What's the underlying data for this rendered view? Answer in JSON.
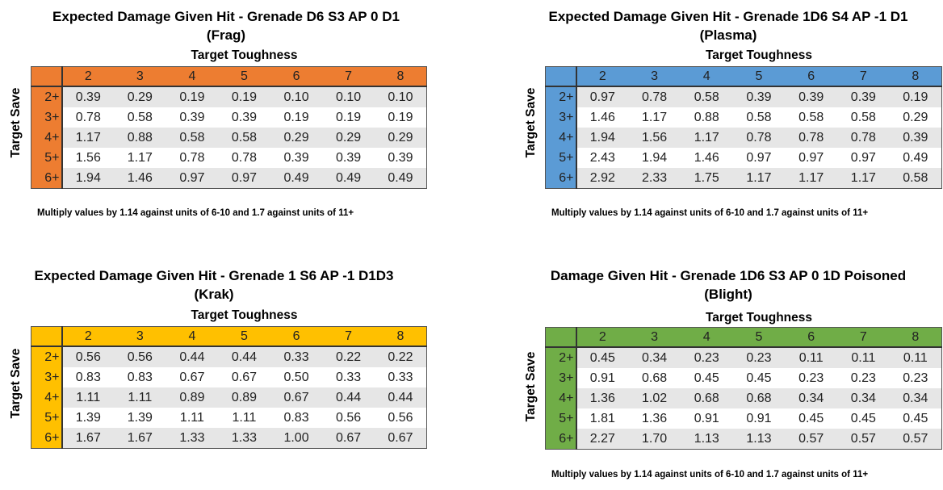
{
  "common": {
    "x_axis_label": "Target Toughness",
    "y_axis_label": "Target Save",
    "toughness": [
      "2",
      "3",
      "4",
      "5",
      "6",
      "7",
      "8"
    ],
    "saves": [
      "2+",
      "3+",
      "4+",
      "5+",
      "6+"
    ],
    "note": "Multiply values by 1.14  against units of 6-10 and 1.7  against units of 11+"
  },
  "panels": [
    {
      "id": "frag",
      "title_line1": "Expected Damage Given Hit - Grenade D6 S3 AP 0 D1",
      "title_line2": "(Frag)",
      "header_color": "#ED7D31",
      "has_note": true,
      "rows": [
        [
          "0.39",
          "0.29",
          "0.19",
          "0.19",
          "0.10",
          "0.10",
          "0.10"
        ],
        [
          "0.78",
          "0.58",
          "0.39",
          "0.39",
          "0.19",
          "0.19",
          "0.19"
        ],
        [
          "1.17",
          "0.88",
          "0.58",
          "0.58",
          "0.29",
          "0.29",
          "0.29"
        ],
        [
          "1.56",
          "1.17",
          "0.78",
          "0.78",
          "0.39",
          "0.39",
          "0.39"
        ],
        [
          "1.94",
          "1.46",
          "0.97",
          "0.97",
          "0.49",
          "0.49",
          "0.49"
        ]
      ]
    },
    {
      "id": "plasma",
      "title_line1": "Expected Damage Given Hit - Grenade 1D6 S4 AP -1 D1",
      "title_line2": "(Plasma)",
      "header_color": "#5B9BD5",
      "has_note": true,
      "rows": [
        [
          "0.97",
          "0.78",
          "0.58",
          "0.39",
          "0.39",
          "0.39",
          "0.19"
        ],
        [
          "1.46",
          "1.17",
          "0.88",
          "0.58",
          "0.58",
          "0.58",
          "0.29"
        ],
        [
          "1.94",
          "1.56",
          "1.17",
          "0.78",
          "0.78",
          "0.78",
          "0.39"
        ],
        [
          "2.43",
          "1.94",
          "1.46",
          "0.97",
          "0.97",
          "0.97",
          "0.49"
        ],
        [
          "2.92",
          "2.33",
          "1.75",
          "1.17",
          "1.17",
          "1.17",
          "0.58"
        ]
      ]
    },
    {
      "id": "krak",
      "title_line1": "Expected Damage Given Hit - Grenade 1 S6 AP -1 D1D3",
      "title_line2": "(Krak)",
      "header_color": "#FFC000",
      "has_note": false,
      "rows": [
        [
          "0.56",
          "0.56",
          "0.44",
          "0.44",
          "0.33",
          "0.22",
          "0.22"
        ],
        [
          "0.83",
          "0.83",
          "0.67",
          "0.67",
          "0.50",
          "0.33",
          "0.33"
        ],
        [
          "1.11",
          "1.11",
          "0.89",
          "0.89",
          "0.67",
          "0.44",
          "0.44"
        ],
        [
          "1.39",
          "1.39",
          "1.11",
          "1.11",
          "0.83",
          "0.56",
          "0.56"
        ],
        [
          "1.67",
          "1.67",
          "1.33",
          "1.33",
          "1.00",
          "0.67",
          "0.67"
        ]
      ]
    },
    {
      "id": "blight",
      "title_line1": "Damage Given Hit - Grenade  1D6 S3 AP 0 1D Poisoned",
      "title_line2": "(Blight)",
      "header_color": "#70AD47",
      "has_note": true,
      "rows": [
        [
          "0.45",
          "0.34",
          "0.23",
          "0.23",
          "0.11",
          "0.11",
          "0.11"
        ],
        [
          "0.91",
          "0.68",
          "0.45",
          "0.45",
          "0.23",
          "0.23",
          "0.23"
        ],
        [
          "1.36",
          "1.02",
          "0.68",
          "0.68",
          "0.34",
          "0.34",
          "0.34"
        ],
        [
          "1.81",
          "1.36",
          "0.91",
          "0.91",
          "0.45",
          "0.45",
          "0.45"
        ],
        [
          "2.27",
          "1.70",
          "1.13",
          "1.13",
          "0.57",
          "0.57",
          "0.57"
        ]
      ]
    }
  ]
}
